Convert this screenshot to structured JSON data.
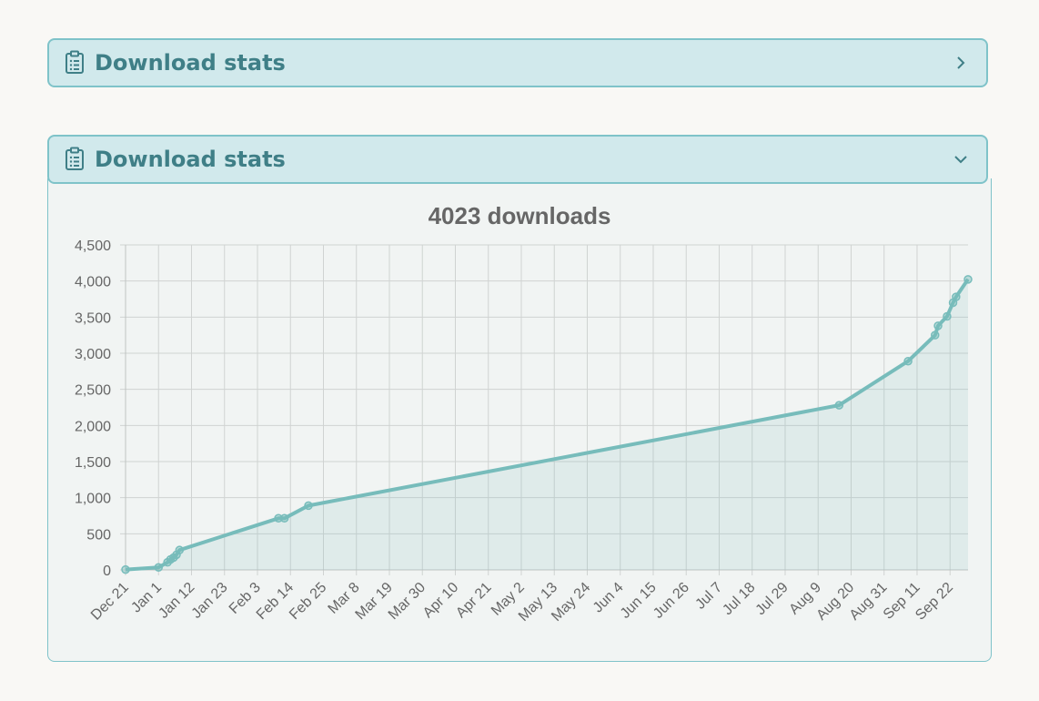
{
  "panels": [
    {
      "title": "Download stats",
      "state": "collapsed",
      "icon": "clipboard-list-icon",
      "toggle_icon": "chevron-right-icon"
    },
    {
      "title": "Download stats",
      "state": "expanded",
      "icon": "clipboard-list-icon",
      "toggle_icon": "chevron-down-icon"
    }
  ],
  "colors": {
    "accent": "#77bcbb",
    "header_bg": "#d1e9ec",
    "header_border": "#7fc3c9",
    "header_text": "#3f7f87",
    "page_bg": "#f9f8f5"
  },
  "chart_data": {
    "type": "line",
    "title": "4023 downloads",
    "fill": true,
    "grid": true,
    "ylim": [
      0,
      4500
    ],
    "yticks": [
      0,
      500,
      1000,
      1500,
      2000,
      2500,
      3000,
      3500,
      4000,
      4500
    ],
    "ytick_labels": [
      "0",
      "500",
      "1,000",
      "1,500",
      "2,000",
      "2,500",
      "3,000",
      "3,500",
      "4,000",
      "4,500"
    ],
    "xtick_labels": [
      "Dec 21",
      "Jan 1",
      "Jan 12",
      "Jan 23",
      "Feb 3",
      "Feb 14",
      "Feb 25",
      "Mar 8",
      "Mar 19",
      "Mar 30",
      "Apr 10",
      "Apr 21",
      "May 2",
      "May 13",
      "May 24",
      "Jun 4",
      "Jun 15",
      "Jun 26",
      "Jul 7",
      "Jul 18",
      "Jul 29",
      "Aug 9",
      "Aug 20",
      "Aug 31",
      "Sep 11",
      "Sep 22"
    ],
    "series": [
      {
        "x": [
          "Dec 21",
          "Jan 1",
          "Jan 4",
          "Jan 5",
          "Jan 6",
          "Jan 7",
          "Jan 8",
          "Feb 10",
          "Feb 12",
          "Feb 20",
          "Aug 16",
          "Sep 8",
          "Sep 17",
          "Sep 18",
          "Sep 21",
          "Sep 23",
          "Sep 24",
          "Sep 28"
        ],
        "y": [
          5,
          35,
          105,
          145,
          170,
          210,
          275,
          715,
          715,
          890,
          2280,
          2890,
          3250,
          3380,
          3510,
          3700,
          3780,
          4023
        ]
      }
    ]
  }
}
